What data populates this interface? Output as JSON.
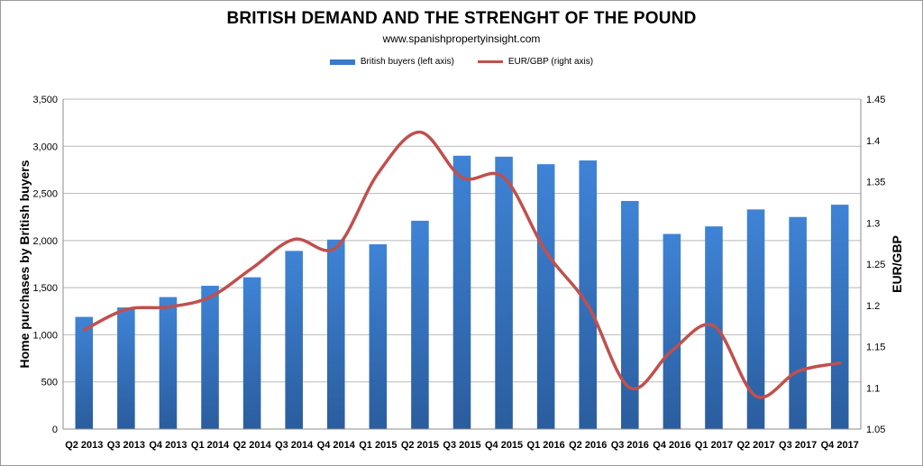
{
  "chart_data": {
    "type": "bar",
    "title": "BRITISH DEMAND AND THE STRENGHT OF THE POUND",
    "subtitle": "www.spanishpropertyinsight.com",
    "ylabel": "Home purchases by British buyers",
    "y2label": "EUR/GBP",
    "categories": [
      "Q2 2013",
      "Q3 2013",
      "Q4 2013",
      "Q1 2014",
      "Q2 2014",
      "Q3 2014",
      "Q4 2014",
      "Q1 2015",
      "Q2 2015",
      "Q3 2015",
      "Q4 2015",
      "Q1 2016",
      "Q2 2016",
      "Q3 2016",
      "Q4 2016",
      "Q1 2017",
      "Q2 2017",
      "Q3 2017",
      "Q4 2017"
    ],
    "series": [
      {
        "name": "British buyers (left axis)",
        "type": "bar",
        "axis": "left",
        "color": "#3a78c9",
        "values": [
          1190,
          1290,
          1400,
          1520,
          1610,
          1890,
          2010,
          1960,
          2210,
          2900,
          2890,
          2810,
          2850,
          2420,
          2070,
          2150,
          2330,
          2250,
          2380
        ]
      },
      {
        "name": "EUR/GBP (right axis)",
        "type": "line",
        "axis": "right",
        "color": "#c0504d",
        "values": [
          1.17,
          1.195,
          1.198,
          1.21,
          1.245,
          1.28,
          1.27,
          1.36,
          1.41,
          1.355,
          1.355,
          1.265,
          1.2,
          1.1,
          1.145,
          1.175,
          1.09,
          1.12,
          1.13
        ]
      }
    ],
    "ylim": [
      0,
      3500
    ],
    "yticks": [
      "0",
      "500",
      "1,000",
      "1,500",
      "2,000",
      "2,500",
      "3,000",
      "3,500"
    ],
    "y2lim": [
      1.05,
      1.45
    ],
    "y2ticks": [
      "1.05",
      "1.1",
      "1.15",
      "1.2",
      "1.25",
      "1.3",
      "1.35",
      "1.4",
      "1.45"
    ],
    "grid": true,
    "legend": "top-center"
  }
}
